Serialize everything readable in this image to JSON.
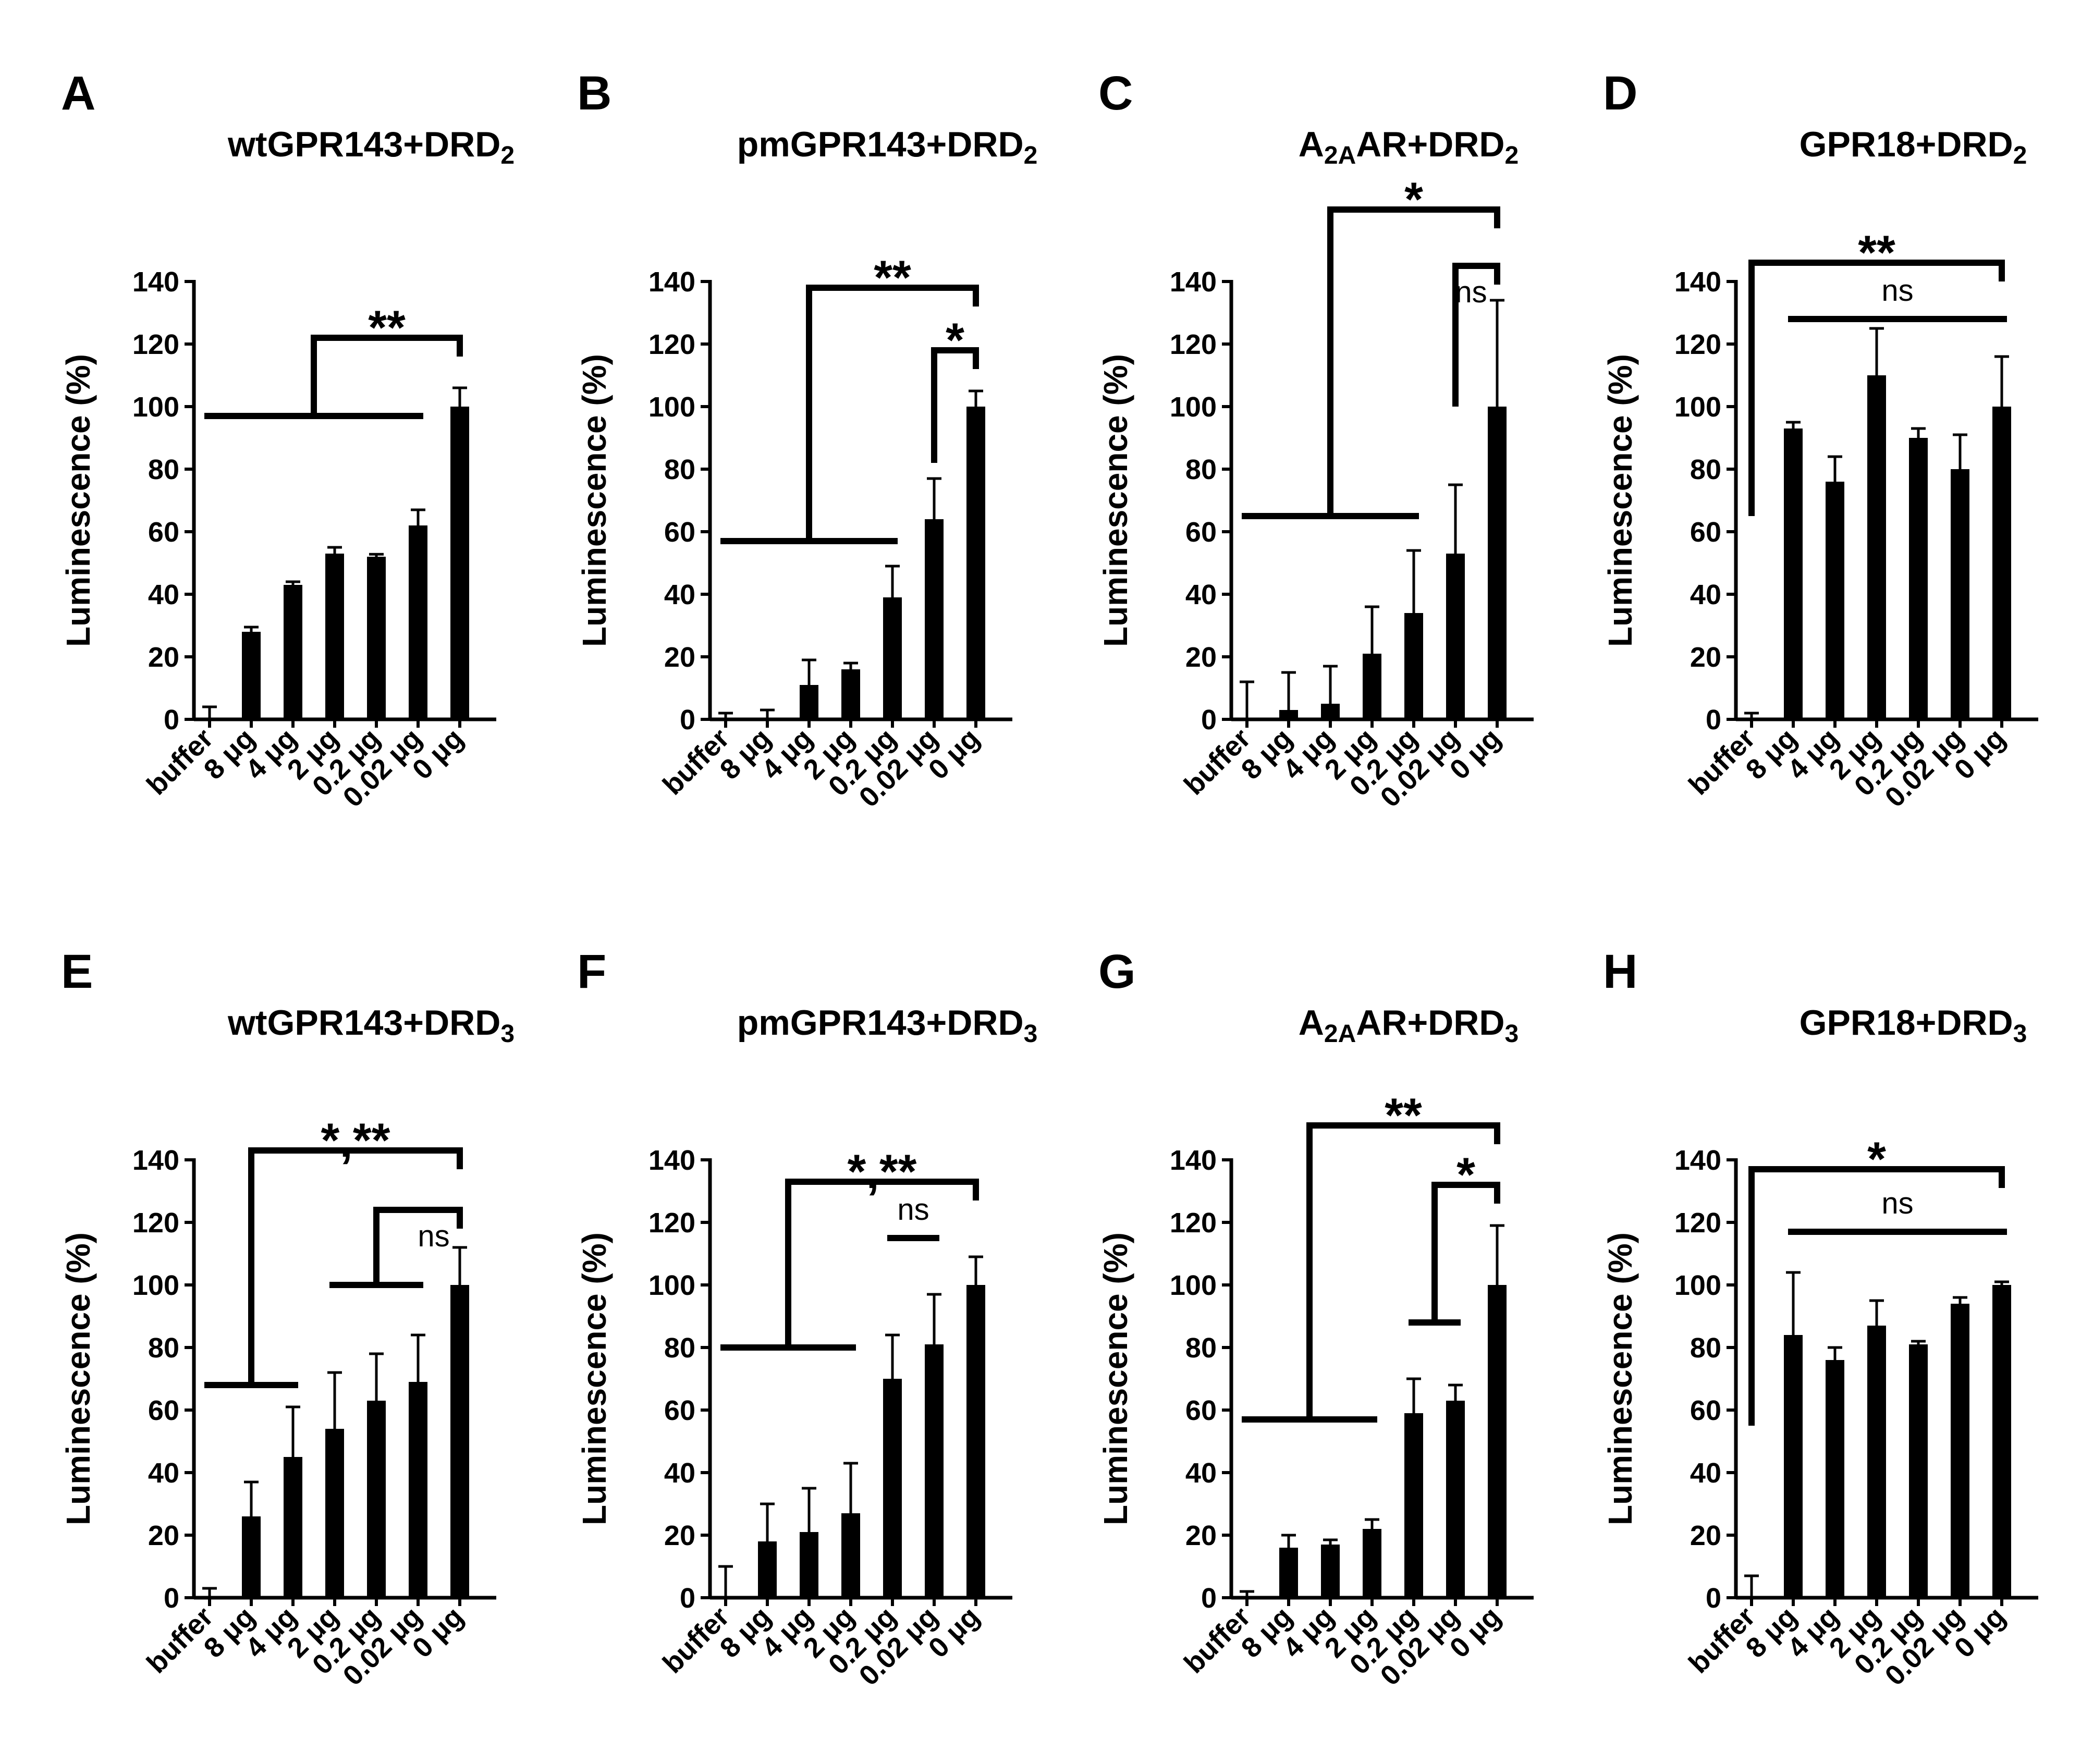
{
  "categories": [
    "buffer",
    "8 μg",
    "4 μg",
    "2 μg",
    "0.2 μg",
    "0.02 μg",
    "0 μg"
  ],
  "y_axis": {
    "label": "Luminescence (%)",
    "ticks": [
      "0",
      "20",
      "40",
      "60",
      "80",
      "100",
      "120",
      "140"
    ]
  },
  "colors": {
    "bar": "#000000",
    "background": "#ffffff"
  },
  "chart_data": [
    {
      "letter": "A",
      "title": "wtGPR143+DRD",
      "title_sub": "2",
      "title_prefix": "",
      "title_prefix_sub": "",
      "type": "bar",
      "ylim": [
        0,
        140
      ],
      "ylabel": "Luminescence (%)",
      "categories": [
        "buffer",
        "8 μg",
        "4 μg",
        "2 μg",
        "0.2 μg",
        "0.02 μg",
        "0 μg"
      ],
      "values": [
        0,
        28,
        43,
        53,
        52,
        62,
        100
      ],
      "errors": [
        4,
        1.5,
        1,
        2,
        0.8,
        5,
        6
      ],
      "annotations": [
        {
          "label": "**",
          "from": [
            0,
            5
          ],
          "to": 6,
          "top": 122,
          "group_y": 97
        }
      ]
    },
    {
      "letter": "B",
      "title": "pmGPR143+DRD",
      "title_sub": "2",
      "title_prefix": "",
      "title_prefix_sub": "",
      "type": "bar",
      "ylim": [
        0,
        140
      ],
      "ylabel": "Luminescence (%)",
      "categories": [
        "buffer",
        "8 μg",
        "4 μg",
        "2 μg",
        "0.2 μg",
        "0.02 μg",
        "0 μg"
      ],
      "values": [
        0,
        0,
        11,
        16,
        39,
        64,
        100
      ],
      "errors": [
        2,
        3,
        8,
        2,
        10,
        13,
        5
      ],
      "annotations": [
        {
          "label": "**",
          "from": [
            0,
            4
          ],
          "to": 6,
          "top": 138,
          "group_y": 57
        },
        {
          "label": "*",
          "from": [
            5,
            5
          ],
          "to": 6,
          "top": 118,
          "start_y": 82
        }
      ]
    },
    {
      "letter": "C",
      "title": "AR+DRD",
      "title_sub": "2",
      "title_prefix": "A",
      "title_prefix_sub": "2A",
      "type": "bar",
      "ylim": [
        0,
        140
      ],
      "ylabel": "Luminescence (%)",
      "categories": [
        "buffer",
        "8 μg",
        "4 μg",
        "2 μg",
        "0.2 μg",
        "0.02 μg",
        "0 μg"
      ],
      "values": [
        0,
        3,
        5,
        21,
        34,
        53,
        100
      ],
      "errors": [
        12,
        12,
        12,
        15,
        20,
        22,
        34
      ],
      "annotations": [
        {
          "label": "*",
          "from": [
            0,
            4
          ],
          "to": 6,
          "top": 163,
          "group_y": 65
        },
        {
          "label": "ns",
          "from": [
            5,
            5
          ],
          "to": 6,
          "top": 145,
          "start_y": 100
        }
      ]
    },
    {
      "letter": "D",
      "title": "GPR18+DRD",
      "title_sub": "2",
      "title_prefix": "",
      "title_prefix_sub": "",
      "type": "bar",
      "ylim": [
        0,
        140
      ],
      "ylabel": "Luminescence (%)",
      "categories": [
        "buffer",
        "8 μg",
        "4 μg",
        "2 μg",
        "0.2 μg",
        "0.02 μg",
        "0 μg"
      ],
      "values": [
        0,
        93,
        76,
        110,
        90,
        80,
        100
      ],
      "errors": [
        2,
        2,
        8,
        15,
        3,
        11,
        16
      ],
      "annotations": [
        {
          "label": "**",
          "from": [
            0,
            0
          ],
          "to": 6,
          "top": 146,
          "start_y": 65
        },
        {
          "label": "ns",
          "line_only": true,
          "from": [
            1,
            6
          ],
          "y": 128
        }
      ]
    },
    {
      "letter": "E",
      "title": "wtGPR143+DRD",
      "title_sub": "3",
      "title_prefix": "",
      "title_prefix_sub": "",
      "type": "bar",
      "ylim": [
        0,
        140
      ],
      "ylabel": "Luminescence (%)",
      "categories": [
        "buffer",
        "8 μg",
        "4 μg",
        "2 μg",
        "0.2 μg",
        "0.02 μg",
        "0 μg"
      ],
      "values": [
        0,
        26,
        45,
        54,
        63,
        69,
        100
      ],
      "errors": [
        3,
        11,
        16,
        18,
        15,
        15,
        12
      ],
      "annotations": [
        {
          "label": "*,**",
          "from": [
            0,
            2
          ],
          "to": 6,
          "top": 143,
          "group_y": 68
        },
        {
          "label": "ns",
          "from": [
            3,
            5
          ],
          "to": 6,
          "top": 124,
          "group_y": 100
        }
      ]
    },
    {
      "letter": "F",
      "title": "pmGPR143+DRD",
      "title_sub": "3",
      "title_prefix": "",
      "title_prefix_sub": "",
      "type": "bar",
      "ylim": [
        0,
        140
      ],
      "ylabel": "Luminescence (%)",
      "categories": [
        "buffer",
        "8 μg",
        "4 μg",
        "2 μg",
        "0.2 μg",
        "0.02 μg",
        "0 μg"
      ],
      "values": [
        0,
        18,
        21,
        27,
        70,
        81,
        100
      ],
      "errors": [
        10,
        12,
        14,
        16,
        14,
        16,
        9
      ],
      "annotations": [
        {
          "label": "*,**",
          "from": [
            0,
            3
          ],
          "to": 6,
          "top": 133,
          "group_y": 80
        },
        {
          "label": "ns",
          "line_only": true,
          "from": [
            4,
            5
          ],
          "y": 115
        }
      ]
    },
    {
      "letter": "G",
      "title": "AR+DRD",
      "title_sub": "3",
      "title_prefix": "A",
      "title_prefix_sub": "2A",
      "type": "bar",
      "ylim": [
        0,
        140
      ],
      "ylabel": "Luminescence (%)",
      "categories": [
        "buffer",
        "8 μg",
        "4 μg",
        "2 μg",
        "0.2 μg",
        "0.02 μg",
        "0 μg"
      ],
      "values": [
        0,
        16,
        17,
        22,
        59,
        63,
        100
      ],
      "errors": [
        2,
        4,
        1.5,
        3,
        11,
        5,
        19
      ],
      "annotations": [
        {
          "label": "**",
          "from": [
            0,
            3
          ],
          "to": 6,
          "top": 151,
          "group_y": 57
        },
        {
          "label": "*",
          "from": [
            4,
            5
          ],
          "to": 6,
          "top": 132,
          "group_y": 88
        }
      ]
    },
    {
      "letter": "H",
      "title": "GPR18+DRD",
      "title_sub": "3",
      "title_prefix": "",
      "title_prefix_sub": "",
      "type": "bar",
      "ylim": [
        0,
        140
      ],
      "ylabel": "Luminescence (%)",
      "categories": [
        "buffer",
        "8 μg",
        "4 μg",
        "2 μg",
        "0.2 μg",
        "0.02 μg",
        "0 μg"
      ],
      "values": [
        0,
        84,
        76,
        87,
        81,
        94,
        100
      ],
      "errors": [
        7,
        20,
        4,
        8,
        1,
        2,
        1
      ],
      "annotations": [
        {
          "label": "*",
          "from": [
            0,
            0
          ],
          "to": 6,
          "top": 137,
          "start_y": 55
        },
        {
          "label": "ns",
          "line_only": true,
          "from": [
            1,
            6
          ],
          "y": 117
        }
      ]
    }
  ]
}
